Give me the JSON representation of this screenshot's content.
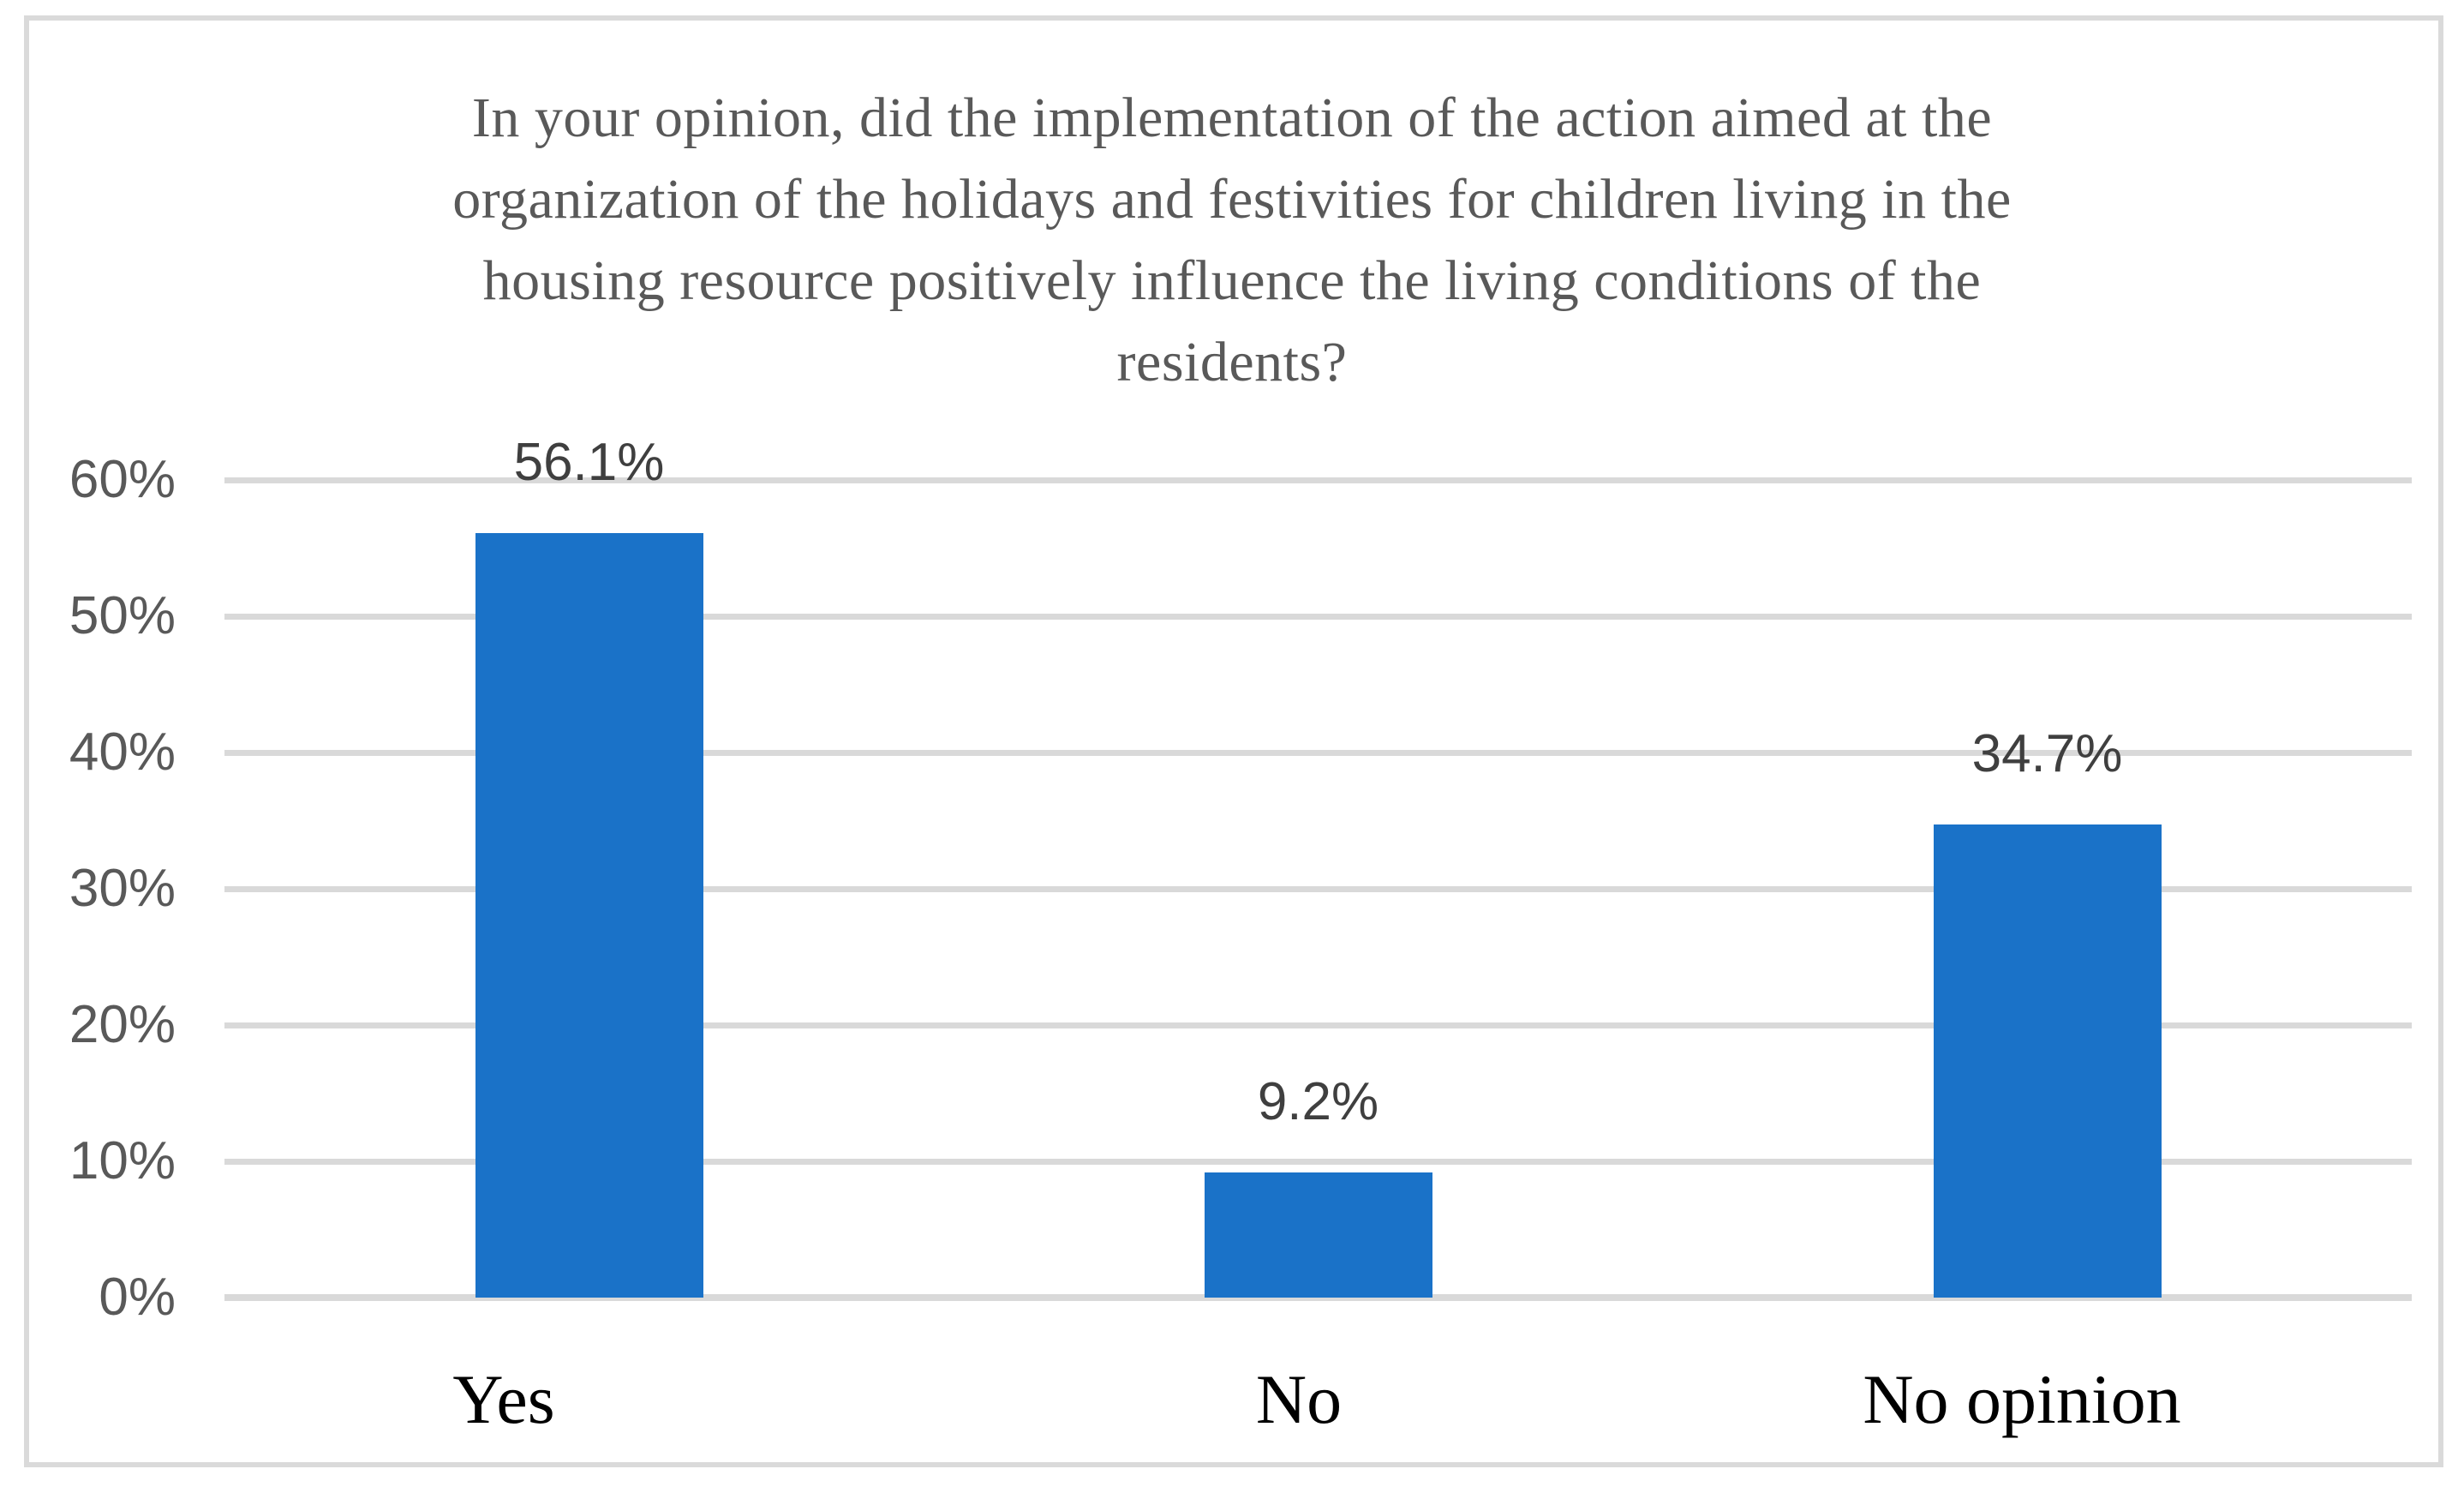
{
  "chart_data": {
    "type": "bar",
    "title": "In your opinion, did the implementation of the action aimed at the organization of the holidays and festivities for children living in the housing resource positively influence the living conditions of the residents?",
    "title_lines": [
      "In your opinion, did the implementation of the action aimed at the",
      "organization of the holidays and festivities for children living in the",
      "housing resource positively influence the living conditions of the",
      "residents?"
    ],
    "categories": [
      "Yes",
      "No",
      "No opinion"
    ],
    "values": [
      56.1,
      9.2,
      34.7
    ],
    "data_labels": [
      "56.1%",
      "9.2%",
      "34.7%"
    ],
    "y_axis": {
      "tick_labels": [
        "0%",
        "10%",
        "20%",
        "30%",
        "40%",
        "50%",
        "60%"
      ],
      "min": 0,
      "max": 60,
      "step": 10
    },
    "grid": true,
    "legend": "none",
    "colors": {
      "bar": "#1A72C8",
      "gridline": "#D9D9D9",
      "axis_line": "#D9D9D9",
      "frame_border": "#DADADA",
      "title_text": "#595959",
      "tick_text": "#595959",
      "data_label_text": "#3F3F3F",
      "category_text": "#000000"
    }
  }
}
